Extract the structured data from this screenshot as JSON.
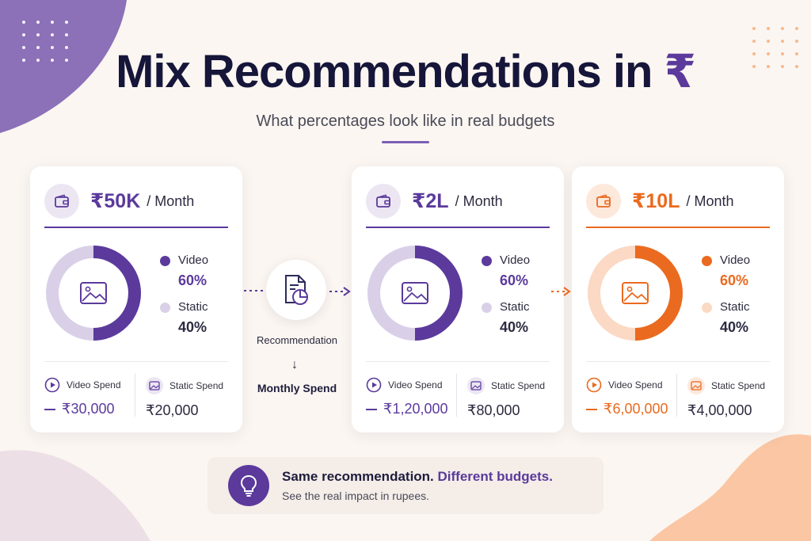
{
  "header": {
    "title_text": "Mix Recommendations in ",
    "title_symbol": "₹",
    "subtitle": "What percentages look like in real budgets"
  },
  "colors": {
    "purple": "#5b3a9c",
    "purple_light": "#d9d0e8",
    "orange": "#ea6a1f",
    "orange_light": "#fbd9c4"
  },
  "cards": [
    {
      "amount": "₹50K",
      "per": "/ Month",
      "video_label": "Video",
      "video_pct_text": "60%",
      "static_label": "Static",
      "static_pct_text": "40%",
      "video_share": 60,
      "video_spend_label": "Video Spend",
      "video_spend": "₹30,000",
      "static_spend_label": "Static Spend",
      "static_spend": "₹20,000",
      "theme": "purple"
    },
    {
      "amount": "₹2L",
      "per": "/ Month",
      "video_label": "Video",
      "video_pct_text": "60%",
      "static_label": "Static",
      "static_pct_text": "40%",
      "video_share": 60,
      "video_spend_label": "Video Spend",
      "video_spend": "₹1,20,000",
      "static_spend_label": "Static Spend",
      "static_spend": "₹80,000",
      "theme": "purple"
    },
    {
      "amount": "₹10L",
      "per": "/ Month",
      "video_label": "Video",
      "video_pct_text": "60%",
      "static_label": "Static",
      "static_pct_text": "40%",
      "video_share": 60,
      "video_spend_label": "Video Spend",
      "video_spend": "₹6,00,000",
      "static_spend_label": "Static Spend",
      "static_spend": "₹4,00,000",
      "theme": "orange"
    }
  ],
  "middle": {
    "label": "Recommendation",
    "arrow": "↓",
    "sublabel": "Monthly Spend",
    "icon": "report-pie-icon"
  },
  "footer": {
    "main": "Same recommendation.",
    "accent": "Different budgets.",
    "sub": "See the real impact in rupees.",
    "icon": "lightbulb-icon"
  }
}
